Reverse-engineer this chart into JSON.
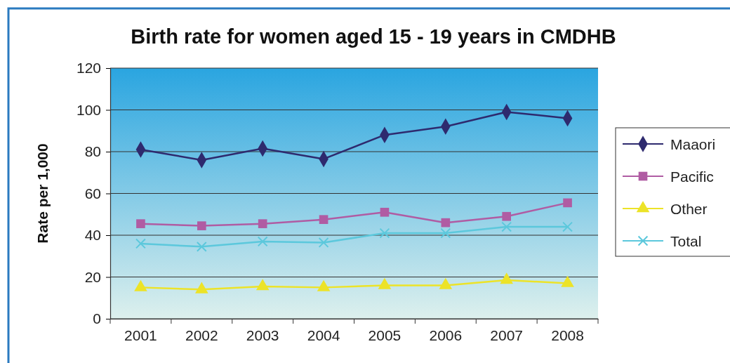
{
  "chart_data": {
    "type": "line",
    "title": "Birth rate for women aged 15 - 19 years in CMDHB",
    "ylabel": "Rate per 1,000",
    "categories": [
      "2001",
      "2002",
      "2003",
      "2004",
      "2005",
      "2006",
      "2007",
      "2008"
    ],
    "series": [
      {
        "name": "Maaori",
        "color": "#2e2a6e",
        "marker": "diamond",
        "values": [
          81,
          76,
          81.5,
          76.5,
          88,
          92,
          99,
          96
        ]
      },
      {
        "name": "Pacific",
        "color": "#b05ca3",
        "marker": "square",
        "values": [
          45.5,
          44.5,
          45.5,
          47.5,
          51,
          46,
          49,
          55.5
        ]
      },
      {
        "name": "Other",
        "color": "#ece328",
        "marker": "triangle",
        "values": [
          15,
          14,
          15.5,
          15,
          16,
          16,
          18.5,
          17
        ]
      },
      {
        "name": "Total",
        "color": "#5cc8dc",
        "marker": "cross",
        "values": [
          36,
          34.5,
          37,
          36.5,
          41,
          41,
          44,
          44
        ]
      }
    ],
    "ylim": [
      0,
      120
    ],
    "yticks": [
      0,
      20,
      40,
      60,
      80,
      100,
      120
    ],
    "grid": "y",
    "legend": "right"
  }
}
